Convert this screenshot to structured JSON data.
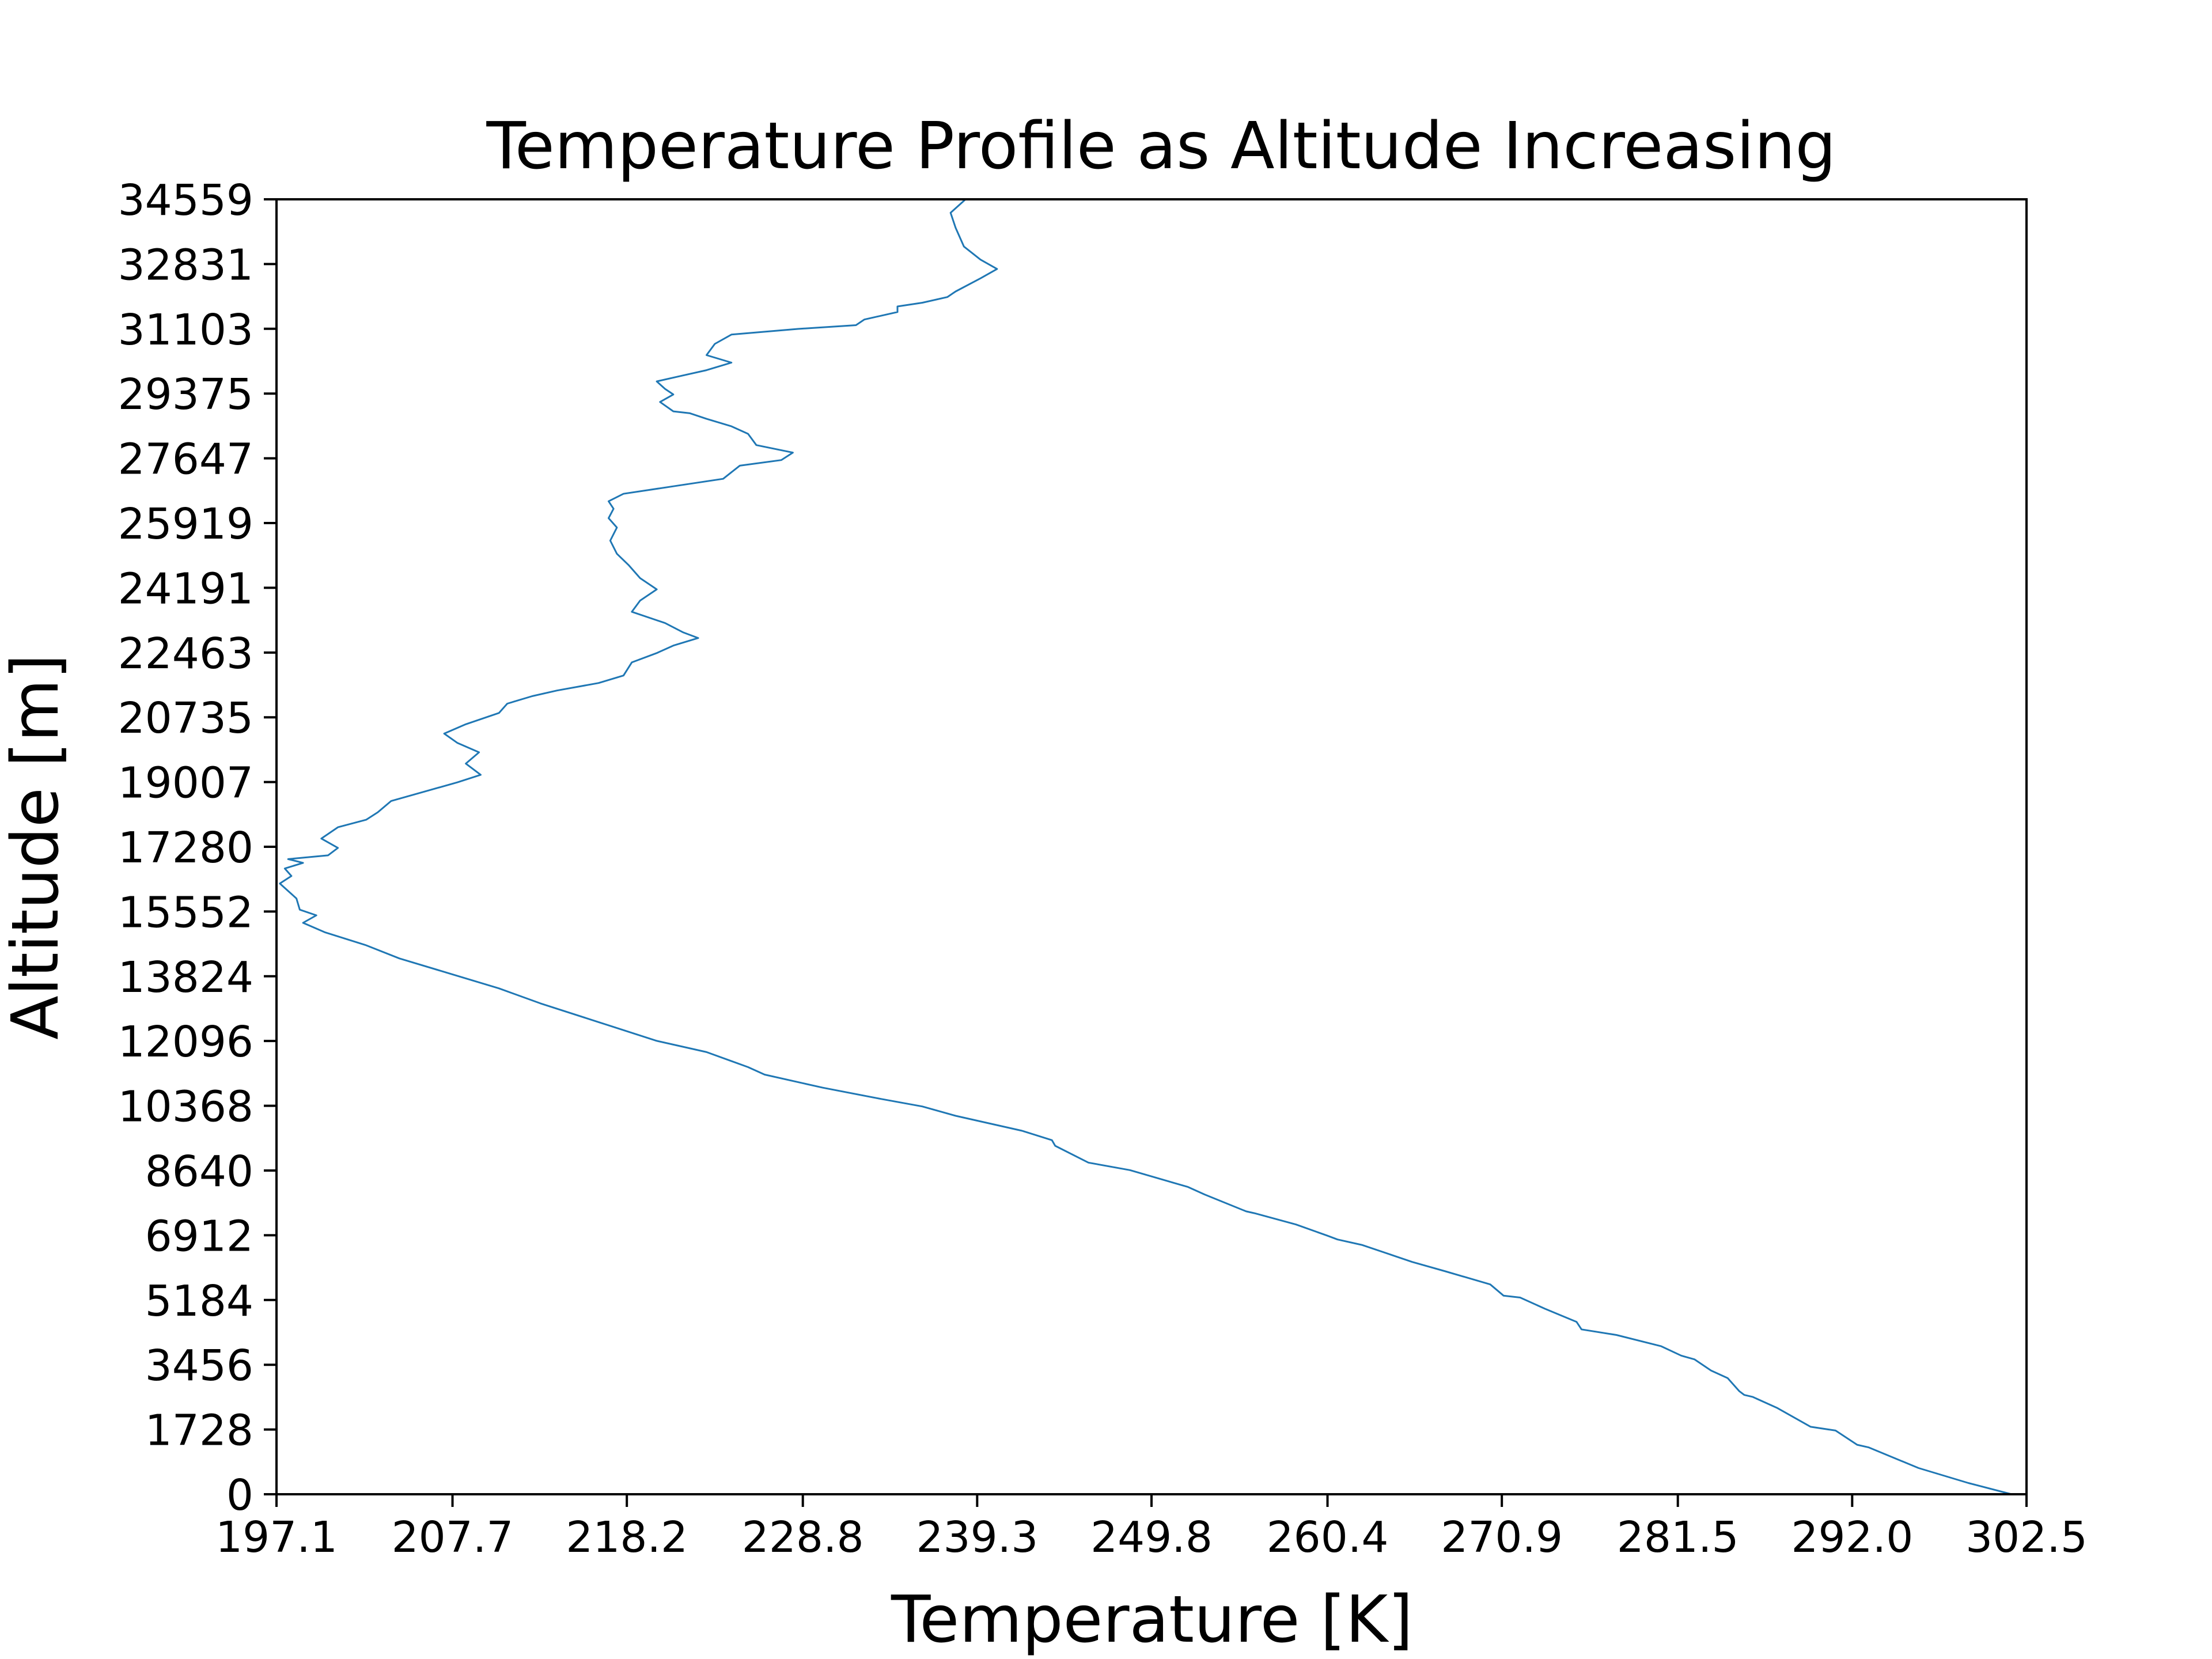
{
  "chart_data": {
    "type": "line",
    "title": "Temperature Profile as Altitude Increasing",
    "xlabel": "Temperature [K]",
    "ylabel": "Altitude [m]",
    "xlim": [
      197.1,
      302.5
    ],
    "ylim": [
      0,
      34559
    ],
    "xticks": [
      "197.1",
      "207.7",
      "218.2",
      "228.8",
      "239.3",
      "249.8",
      "260.4",
      "270.9",
      "281.5",
      "292.0",
      "302.5"
    ],
    "yticks": [
      "0",
      "1728",
      "3456",
      "5184",
      "6912",
      "8640",
      "10368",
      "12096",
      "13824",
      "15552",
      "17280",
      "19007",
      "20735",
      "22463",
      "24191",
      "25919",
      "27647",
      "29375",
      "31103",
      "32831",
      "34559"
    ],
    "grid": false,
    "line_color": "#1f77b4",
    "series": [
      {
        "points": [
          [
            301.6,
            0
          ],
          [
            299.0,
            300
          ],
          [
            296.0,
            700
          ],
          [
            293.0,
            1250
          ],
          [
            292.3,
            1320
          ],
          [
            291.0,
            1700
          ],
          [
            289.5,
            1800
          ],
          [
            287.5,
            2300
          ],
          [
            286.0,
            2600
          ],
          [
            285.5,
            2650
          ],
          [
            285.2,
            2750
          ],
          [
            284.5,
            3100
          ],
          [
            283.5,
            3300
          ],
          [
            282.5,
            3600
          ],
          [
            281.7,
            3700
          ],
          [
            280.5,
            3950
          ],
          [
            277.8,
            4250
          ],
          [
            275.7,
            4400
          ],
          [
            275.4,
            4600
          ],
          [
            273.5,
            4950
          ],
          [
            272.0,
            5250
          ],
          [
            271.0,
            5300
          ],
          [
            270.2,
            5600
          ],
          [
            267.5,
            5950
          ],
          [
            265.5,
            6200
          ],
          [
            264.5,
            6350
          ],
          [
            262.5,
            6650
          ],
          [
            261.0,
            6800
          ],
          [
            260.4,
            6900
          ],
          [
            258.5,
            7200
          ],
          [
            256.0,
            7500
          ],
          [
            255.5,
            7550
          ],
          [
            253.0,
            8000
          ],
          [
            252.0,
            8200
          ],
          [
            248.5,
            8650
          ],
          [
            246.0,
            8850
          ],
          [
            244.0,
            9300
          ],
          [
            243.8,
            9450
          ],
          [
            242.0,
            9700
          ],
          [
            238.0,
            10100
          ],
          [
            236.0,
            10350
          ],
          [
            233.5,
            10550
          ],
          [
            230.0,
            10850
          ],
          [
            226.5,
            11200
          ],
          [
            225.5,
            11400
          ],
          [
            223.0,
            11800
          ],
          [
            220.0,
            12100
          ],
          [
            216.5,
            12600
          ],
          [
            213.0,
            13100
          ],
          [
            210.5,
            13500
          ],
          [
            207.5,
            13900
          ],
          [
            204.5,
            14300
          ],
          [
            202.5,
            14650
          ],
          [
            200.0,
            15000
          ],
          [
            198.7,
            15250
          ],
          [
            199.5,
            15450
          ],
          [
            198.5,
            15600
          ],
          [
            198.3,
            15900
          ],
          [
            197.8,
            16100
          ],
          [
            197.3,
            16300
          ],
          [
            198.0,
            16500
          ],
          [
            197.6,
            16700
          ],
          [
            198.7,
            16850
          ],
          [
            197.8,
            16950
          ],
          [
            200.2,
            17050
          ],
          [
            200.8,
            17250
          ],
          [
            199.8,
            17500
          ],
          [
            200.8,
            17800
          ],
          [
            202.5,
            18000
          ],
          [
            203.2,
            18200
          ],
          [
            204.0,
            18500
          ],
          [
            206.0,
            18750
          ],
          [
            208.0,
            19000
          ],
          [
            209.4,
            19200
          ],
          [
            208.5,
            19500
          ],
          [
            209.3,
            19800
          ],
          [
            208.0,
            20050
          ],
          [
            207.2,
            20300
          ],
          [
            208.5,
            20550
          ],
          [
            210.5,
            20850
          ],
          [
            211.0,
            21100
          ],
          [
            212.5,
            21300
          ],
          [
            214.0,
            21450
          ],
          [
            216.5,
            21650
          ],
          [
            218.0,
            21850
          ],
          [
            218.5,
            22200
          ],
          [
            220.0,
            22450
          ],
          [
            221.0,
            22650
          ],
          [
            222.5,
            22850
          ],
          [
            221.6,
            23000
          ],
          [
            220.5,
            23250
          ],
          [
            218.5,
            23550
          ],
          [
            219.0,
            23850
          ],
          [
            220.0,
            24150
          ],
          [
            219.0,
            24450
          ],
          [
            218.3,
            24800
          ],
          [
            217.6,
            25100
          ],
          [
            217.2,
            25450
          ],
          [
            217.6,
            25800
          ],
          [
            217.1,
            26050
          ],
          [
            217.4,
            26300
          ],
          [
            217.1,
            26500
          ],
          [
            218.0,
            26700
          ],
          [
            221.0,
            26900
          ],
          [
            224.0,
            27100
          ],
          [
            225.0,
            27450
          ],
          [
            227.5,
            27600
          ],
          [
            228.2,
            27800
          ],
          [
            226.0,
            28000
          ],
          [
            225.5,
            28300
          ],
          [
            224.5,
            28500
          ],
          [
            223.0,
            28700
          ],
          [
            222.0,
            28850
          ],
          [
            221.0,
            28900
          ],
          [
            220.2,
            29150
          ],
          [
            221.0,
            29350
          ],
          [
            220.5,
            29500
          ],
          [
            220.0,
            29700
          ],
          [
            221.5,
            29850
          ],
          [
            223.0,
            30000
          ],
          [
            224.5,
            30200
          ],
          [
            223.0,
            30400
          ],
          [
            223.5,
            30700
          ],
          [
            224.5,
            30950
          ],
          [
            228.5,
            31100
          ],
          [
            232.0,
            31200
          ],
          [
            232.5,
            31350
          ],
          [
            234.5,
            31550
          ],
          [
            234.5,
            31700
          ],
          [
            236.0,
            31800
          ],
          [
            237.5,
            31950
          ],
          [
            238.0,
            32100
          ],
          [
            239.5,
            32450
          ],
          [
            240.5,
            32700
          ],
          [
            239.5,
            32950
          ],
          [
            238.5,
            33300
          ],
          [
            238.0,
            33800
          ],
          [
            237.7,
            34200
          ],
          [
            238.6,
            34559
          ]
        ]
      }
    ]
  }
}
